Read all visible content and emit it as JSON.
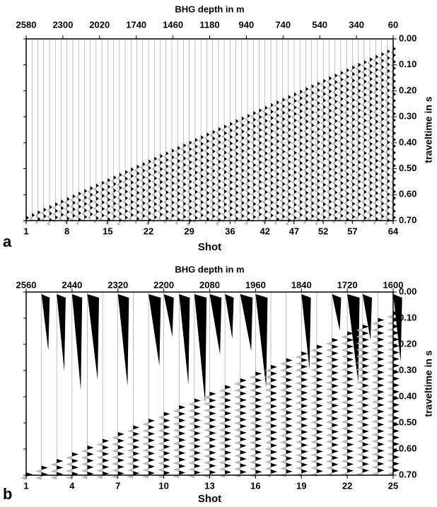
{
  "chart_data": [
    {
      "type": "seismogram",
      "panel_label": "a",
      "title": "BHG depth in m",
      "xlabel": "Shot",
      "ylabel": "traveltime in s",
      "xlim": [
        1,
        64
      ],
      "xticks": [
        1,
        8,
        15,
        22,
        29,
        36,
        42,
        47,
        52,
        57,
        64
      ],
      "x2ticks": [
        2580,
        2300,
        2020,
        1740,
        1460,
        1180,
        940,
        740,
        540,
        340,
        60
      ],
      "ylim": [
        0,
        0.7
      ],
      "yticks": [
        {
          "value": 0,
          "label": "0.00"
        },
        {
          "value": 0.1,
          "label": "0.10"
        },
        {
          "value": 0.2,
          "label": "0.20"
        },
        {
          "value": 0.3,
          "label": "0.30"
        },
        {
          "value": 0.4,
          "label": "0.40"
        },
        {
          "value": 0.5,
          "label": "0.50"
        },
        {
          "value": 0.6,
          "label": "0.60"
        },
        {
          "value": 0.7,
          "label": "0.70"
        }
      ]
    },
    {
      "type": "seismogram",
      "panel_label": "b",
      "title": "BHG depth in m",
      "xlabel": "Shot",
      "ylabel": "traveltime in s",
      "xlim": [
        1,
        25
      ],
      "xticks": [
        1,
        4,
        7,
        10,
        13,
        16,
        19,
        22,
        25
      ],
      "x2ticks": [
        2560,
        2440,
        2320,
        2200,
        2080,
        1960,
        1840,
        1720,
        1600
      ],
      "ylim": [
        0,
        0.7
      ],
      "yticks": [
        {
          "value": 0,
          "label": "0.00"
        },
        {
          "value": 0.1,
          "label": "0.10"
        },
        {
          "value": 0.2,
          "label": "0.20"
        },
        {
          "value": 0.3,
          "label": "0.30"
        },
        {
          "value": 0.4,
          "label": "0.40"
        },
        {
          "value": 0.5,
          "label": "0.50"
        },
        {
          "value": 0.6,
          "label": "0.60"
        },
        {
          "value": 0.7,
          "label": "0.70"
        }
      ]
    }
  ]
}
